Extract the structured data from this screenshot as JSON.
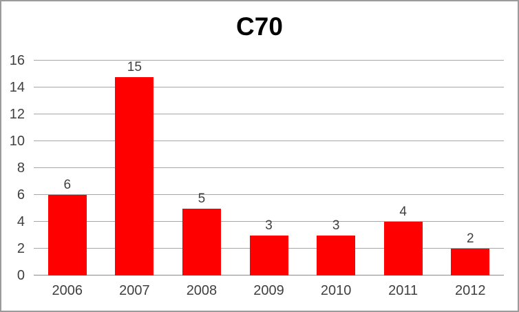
{
  "chart_data": {
    "type": "bar",
    "title": "C70",
    "categories": [
      "2006",
      "2007",
      "2008",
      "2009",
      "2010",
      "2011",
      "2012"
    ],
    "values": [
      6,
      15,
      5,
      3,
      3,
      4,
      2
    ],
    "data_labels": [
      "6",
      "15",
      "5",
      "3",
      "3",
      "4",
      "2"
    ],
    "xlabel": "",
    "ylabel": "",
    "ylim": [
      0,
      16
    ],
    "yticks": [
      0,
      2,
      4,
      6,
      8,
      10,
      12,
      14,
      16
    ],
    "grid": true,
    "legend_position": "none",
    "colors": {
      "bar": "#ff0000",
      "gridline": "#a6a6a6",
      "axis_line": "#898989",
      "tick_text": "#3f3f3f",
      "title_text": "#000000",
      "frame_border": "#9b9b9b",
      "background": "#ffffff"
    }
  }
}
